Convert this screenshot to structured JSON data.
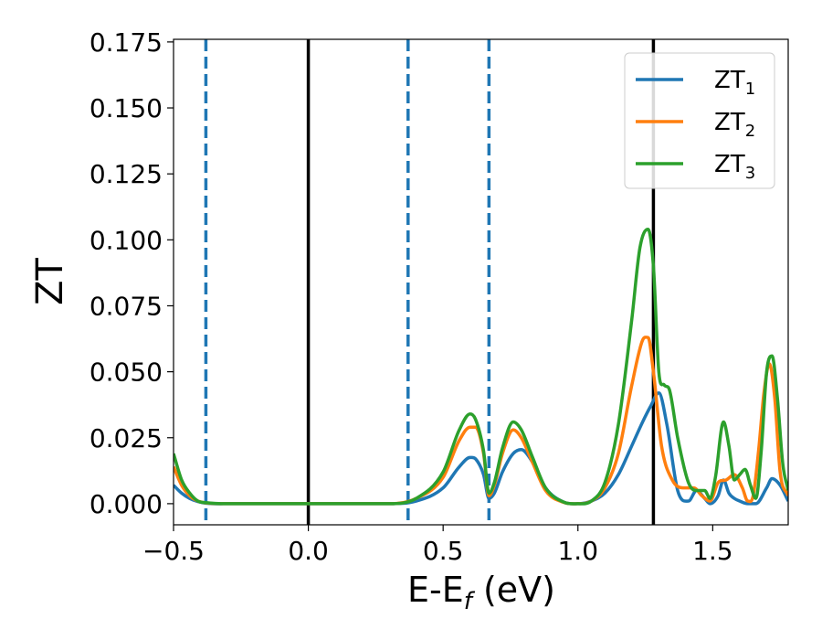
{
  "chart_data": {
    "type": "line",
    "title": "",
    "xlabel_main": "E-E",
    "xlabel_sub": "f",
    "xlabel_tail": " (eV)",
    "ylabel": "ZT",
    "xlim": [
      -0.5,
      1.78
    ],
    "ylim": [
      -0.008,
      0.176
    ],
    "xticks": [
      {
        "value": -0.5,
        "label": "−0.5"
      },
      {
        "value": 0.0,
        "label": "0.0"
      },
      {
        "value": 0.5,
        "label": "0.5"
      },
      {
        "value": 1.0,
        "label": "1.0"
      },
      {
        "value": 1.5,
        "label": "1.5"
      }
    ],
    "yticks": [
      {
        "value": 0.0,
        "label": "0.000"
      },
      {
        "value": 0.025,
        "label": "0.025"
      },
      {
        "value": 0.05,
        "label": "0.050"
      },
      {
        "value": 0.075,
        "label": "0.075"
      },
      {
        "value": 0.1,
        "label": "0.100"
      },
      {
        "value": 0.125,
        "label": "0.125"
      },
      {
        "value": 0.15,
        "label": "0.150"
      },
      {
        "value": 0.175,
        "label": "0.175"
      }
    ],
    "vlines_solid": [
      0.0,
      1.28
    ],
    "vlines_dashed": [
      -0.38,
      0.37,
      0.67
    ],
    "legend_position": "top-right",
    "series": [
      {
        "base": "ZT",
        "sub": "1",
        "color": "#1f77b4",
        "x": [
          -0.5,
          -0.47,
          -0.44,
          -0.41,
          -0.38,
          -0.3,
          0.0,
          0.3,
          0.4,
          0.5,
          0.56,
          0.6,
          0.62,
          0.65,
          0.67,
          0.69,
          0.72,
          0.76,
          0.79,
          0.83,
          0.88,
          0.95,
          1.0,
          1.05,
          1.1,
          1.15,
          1.2,
          1.24,
          1.27,
          1.3,
          1.33,
          1.37,
          1.41,
          1.44,
          1.47,
          1.49,
          1.52,
          1.54,
          1.56,
          1.58,
          1.6,
          1.63,
          1.66,
          1.7,
          1.72,
          1.75,
          1.78
        ],
        "y": [
          0.007,
          0.004,
          0.002,
          0.0008,
          0.0002,
          0.0,
          0.0,
          0.0,
          0.001,
          0.006,
          0.014,
          0.0175,
          0.017,
          0.011,
          0.002,
          0.004,
          0.012,
          0.019,
          0.0205,
          0.016,
          0.006,
          0.0005,
          0.0,
          0.001,
          0.004,
          0.011,
          0.022,
          0.031,
          0.037,
          0.042,
          0.03,
          0.005,
          0.001,
          0.005,
          0.002,
          0.0,
          0.003,
          0.009,
          0.004,
          0.002,
          0.001,
          0.0,
          0.0,
          0.006,
          0.0095,
          0.007,
          0.001
        ]
      },
      {
        "base": "ZT",
        "sub": "2",
        "color": "#ff7f0e",
        "x": [
          -0.5,
          -0.47,
          -0.44,
          -0.41,
          -0.38,
          -0.3,
          0.0,
          0.3,
          0.4,
          0.5,
          0.56,
          0.6,
          0.62,
          0.65,
          0.67,
          0.69,
          0.72,
          0.76,
          0.79,
          0.83,
          0.88,
          0.95,
          1.0,
          1.05,
          1.1,
          1.15,
          1.2,
          1.24,
          1.26,
          1.28,
          1.31,
          1.35,
          1.39,
          1.43,
          1.46,
          1.49,
          1.52,
          1.55,
          1.58,
          1.61,
          1.63,
          1.65,
          1.67,
          1.69,
          1.71,
          1.73,
          1.75,
          1.78
        ],
        "y": [
          0.014,
          0.007,
          0.003,
          0.001,
          0.0003,
          0.0,
          0.0,
          0.0,
          0.002,
          0.01,
          0.024,
          0.029,
          0.029,
          0.019,
          0.003,
          0.007,
          0.019,
          0.028,
          0.025,
          0.016,
          0.005,
          0.0004,
          0.0,
          0.001,
          0.006,
          0.019,
          0.045,
          0.062,
          0.063,
          0.05,
          0.022,
          0.009,
          0.006,
          0.006,
          0.003,
          0.001,
          0.008,
          0.009,
          0.011,
          0.006,
          0.001,
          0.003,
          0.02,
          0.042,
          0.053,
          0.04,
          0.012,
          0.003
        ]
      },
      {
        "base": "ZT",
        "sub": "3",
        "color": "#2ca02c",
        "x": [
          -0.5,
          -0.47,
          -0.44,
          -0.41,
          -0.38,
          -0.3,
          0.0,
          0.3,
          0.4,
          0.5,
          0.56,
          0.6,
          0.62,
          0.65,
          0.67,
          0.69,
          0.72,
          0.76,
          0.79,
          0.83,
          0.88,
          0.95,
          1.0,
          1.05,
          1.1,
          1.15,
          1.2,
          1.23,
          1.26,
          1.28,
          1.3,
          1.32,
          1.34,
          1.37,
          1.41,
          1.44,
          1.47,
          1.49,
          1.51,
          1.54,
          1.56,
          1.58,
          1.6,
          1.62,
          1.64,
          1.66,
          1.68,
          1.7,
          1.72,
          1.74,
          1.76,
          1.78
        ],
        "y": [
          0.019,
          0.009,
          0.004,
          0.001,
          0.0004,
          0.0,
          0.0,
          0.0,
          0.002,
          0.012,
          0.028,
          0.034,
          0.032,
          0.02,
          0.004,
          0.008,
          0.021,
          0.031,
          0.028,
          0.018,
          0.006,
          0.0005,
          0.0,
          0.001,
          0.008,
          0.03,
          0.07,
          0.097,
          0.104,
          0.09,
          0.05,
          0.045,
          0.043,
          0.025,
          0.008,
          0.005,
          0.005,
          0.002,
          0.01,
          0.031,
          0.022,
          0.009,
          0.011,
          0.013,
          0.007,
          0.002,
          0.02,
          0.05,
          0.056,
          0.04,
          0.015,
          0.005
        ]
      }
    ]
  }
}
